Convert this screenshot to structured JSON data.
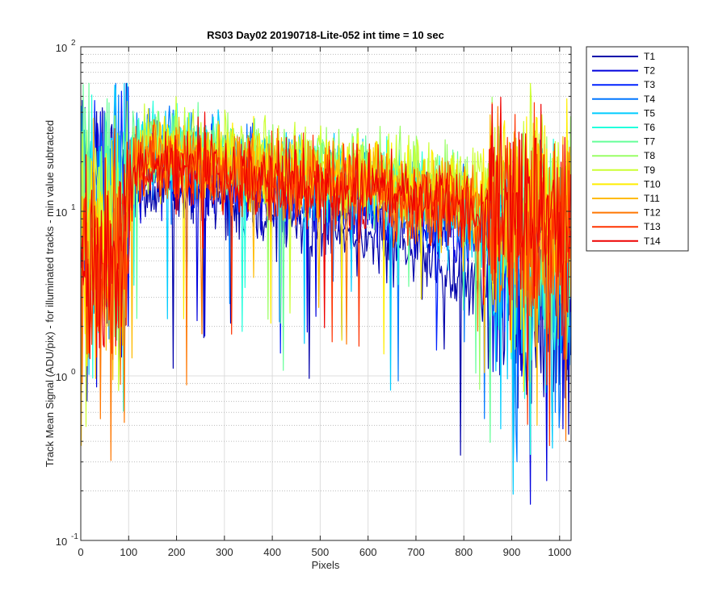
{
  "chart_data": {
    "type": "line",
    "title": "RS03 Day02 20190718-Lite-052 int time = 10 sec",
    "xlabel": "Pixels",
    "ylabel": "Track Mean Signal (ADU/pix) - for illuminated tracks - min value subtracted",
    "xlim": [
      0,
      1024
    ],
    "ylim": [
      0.1,
      100
    ],
    "yscale": "log",
    "grid": true,
    "legend_position": "outside-right",
    "x_ticks": [
      "0",
      "100",
      "200",
      "300",
      "400",
      "500",
      "600",
      "700",
      "800",
      "900",
      "1000"
    ],
    "y_ticks": [
      {
        "base": "10",
        "exp": "-1"
      },
      {
        "base": "10",
        "exp": "0"
      },
      {
        "base": "10",
        "exp": "1"
      },
      {
        "base": "10",
        "exp": "2"
      }
    ],
    "x": [
      0,
      50,
      85,
      110,
      150,
      250,
      400,
      600,
      800,
      850,
      900,
      1000,
      1024
    ],
    "series": [
      {
        "name": "T1",
        "color": "#0000aa",
        "values": [
          11,
          11,
          10,
          14,
          15,
          13,
          10,
          7,
          4,
          3.5,
          2.5,
          2.5,
          2.5
        ]
      },
      {
        "name": "T2",
        "color": "#0000dd",
        "values": [
          11,
          11,
          10,
          16,
          18,
          16,
          13,
          10,
          7,
          5.5,
          4,
          3.5,
          3.5
        ]
      },
      {
        "name": "T3",
        "color": "#0022ff",
        "values": [
          12,
          12,
          11,
          19,
          22,
          19,
          15,
          12,
          9,
          7,
          5,
          4.5,
          4.5
        ]
      },
      {
        "name": "T4",
        "color": "#0077ff",
        "values": [
          12,
          12,
          11,
          22,
          26,
          22,
          17,
          14,
          10,
          8,
          6,
          5,
          5
        ]
      },
      {
        "name": "T5",
        "color": "#00ccff",
        "values": [
          11,
          11,
          10,
          21,
          25,
          22,
          17,
          14,
          10,
          8,
          5,
          4.5,
          4.5
        ]
      },
      {
        "name": "T6",
        "color": "#22ffdd",
        "values": [
          10,
          10,
          9,
          22,
          26,
          23,
          18,
          15,
          11,
          9,
          6,
          5,
          5
        ]
      },
      {
        "name": "T7",
        "color": "#66ff99",
        "values": [
          9,
          9,
          8,
          22,
          26,
          23,
          19,
          16,
          12,
          10,
          7,
          6,
          6
        ]
      },
      {
        "name": "T8",
        "color": "#99ff66",
        "values": [
          8,
          8,
          7,
          22,
          25,
          23,
          20,
          17,
          14,
          12,
          10,
          9,
          9
        ]
      },
      {
        "name": "T9",
        "color": "#ccff33",
        "values": [
          7,
          7,
          6,
          21,
          24,
          23,
          21,
          18,
          15,
          14,
          12,
          11,
          11
        ]
      },
      {
        "name": "T10",
        "color": "#ffee00",
        "values": [
          7,
          7,
          6,
          20,
          23,
          21,
          18,
          16,
          13,
          12,
          11,
          10,
          10
        ]
      },
      {
        "name": "T11",
        "color": "#ffbb00",
        "values": [
          6,
          6,
          5,
          19,
          22,
          20,
          17,
          15,
          12,
          11,
          9,
          8,
          8
        ]
      },
      {
        "name": "T12",
        "color": "#ff7700",
        "values": [
          6,
          6,
          5,
          18,
          21,
          19,
          16,
          14,
          11,
          10,
          8,
          7,
          7
        ]
      },
      {
        "name": "T13",
        "color": "#ff3300",
        "values": [
          5,
          5,
          5,
          17,
          20,
          18,
          15,
          13,
          10,
          9,
          8,
          7,
          7
        ]
      },
      {
        "name": "T14",
        "color": "#ee0000",
        "values": [
          5,
          5,
          5,
          17,
          20,
          18,
          15,
          13,
          11,
          10,
          9,
          8,
          8
        ]
      }
    ]
  }
}
